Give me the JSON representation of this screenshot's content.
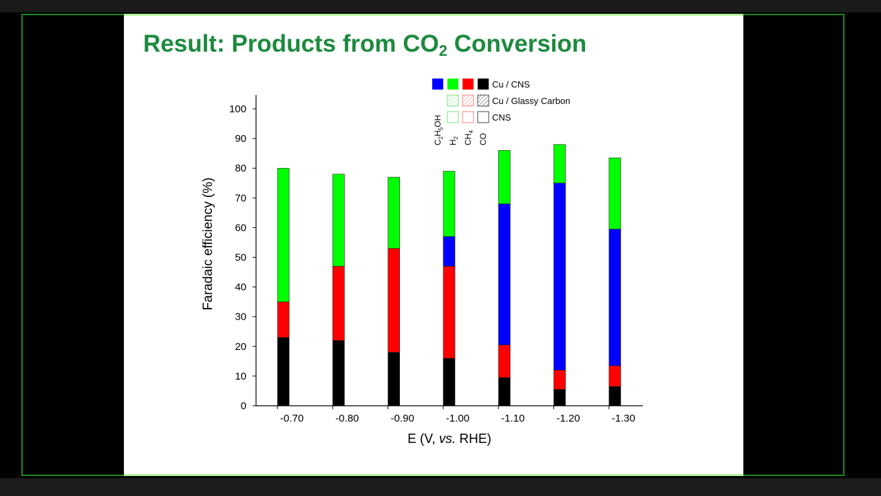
{
  "slide": {
    "title_prefix": "Result: Products from CO",
    "title_sub": "2",
    "title_suffix": " Conversion"
  },
  "chart_data": {
    "type": "bar",
    "stacked": true,
    "title": "",
    "xlabel": "E (V, vs. RHE)",
    "ylabel": "Faradaic efficiency (%)",
    "ylim": [
      0,
      100
    ],
    "yticks": [
      "0",
      "10",
      "20",
      "30",
      "40",
      "50",
      "60",
      "70",
      "80",
      "90",
      "100"
    ],
    "categories": [
      "-0.70",
      "-0.80",
      "-0.90",
      "-1.00",
      "-1.10",
      "-1.20",
      "-1.30"
    ],
    "series": [
      {
        "name": "CO",
        "color": "#000000",
        "values": [
          23,
          22,
          18,
          16,
          9.5,
          5.5,
          6.5
        ]
      },
      {
        "name": "CH4",
        "color": "#ff0000",
        "values": [
          12,
          25,
          35,
          31,
          11,
          6.5,
          7
        ]
      },
      {
        "name": "C2H5OH",
        "color": "#0000ff",
        "values": [
          0,
          0,
          0,
          10,
          47.5,
          63,
          46
        ]
      },
      {
        "name": "H2",
        "color": "#00ff00",
        "values": [
          45,
          31,
          24,
          22,
          18,
          13,
          24
        ]
      }
    ],
    "legend": {
      "placement": "top-right",
      "rows": [
        "Cu / CNS",
        "Cu / Glassy Carbon",
        "CNS"
      ],
      "column_labels": [
        "C2H5OH",
        "H2",
        "CH4",
        "CO"
      ]
    },
    "grid": false
  }
}
